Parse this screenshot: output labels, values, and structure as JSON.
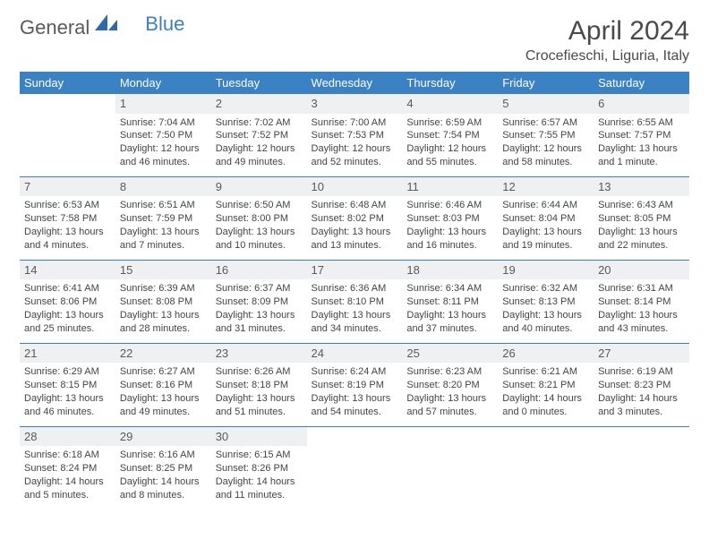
{
  "brand": {
    "part1": "General",
    "part2": "Blue"
  },
  "title": "April 2024",
  "location": "Crocefieschi, Liguria, Italy",
  "colors": {
    "header_bg": "#3b82c4",
    "header_text": "#ffffff",
    "daynum_bg": "#eef0f2",
    "row_border": "#3b7fc4",
    "text": "#444444",
    "title_text": "#4a4a4a"
  },
  "weekdays": [
    "Sunday",
    "Monday",
    "Tuesday",
    "Wednesday",
    "Thursday",
    "Friday",
    "Saturday"
  ],
  "start_offset": 1,
  "days": [
    {
      "n": 1,
      "sr": "7:04 AM",
      "ss": "7:50 PM",
      "dl": "12 hours and 46 minutes."
    },
    {
      "n": 2,
      "sr": "7:02 AM",
      "ss": "7:52 PM",
      "dl": "12 hours and 49 minutes."
    },
    {
      "n": 3,
      "sr": "7:00 AM",
      "ss": "7:53 PM",
      "dl": "12 hours and 52 minutes."
    },
    {
      "n": 4,
      "sr": "6:59 AM",
      "ss": "7:54 PM",
      "dl": "12 hours and 55 minutes."
    },
    {
      "n": 5,
      "sr": "6:57 AM",
      "ss": "7:55 PM",
      "dl": "12 hours and 58 minutes."
    },
    {
      "n": 6,
      "sr": "6:55 AM",
      "ss": "7:57 PM",
      "dl": "13 hours and 1 minute."
    },
    {
      "n": 7,
      "sr": "6:53 AM",
      "ss": "7:58 PM",
      "dl": "13 hours and 4 minutes."
    },
    {
      "n": 8,
      "sr": "6:51 AM",
      "ss": "7:59 PM",
      "dl": "13 hours and 7 minutes."
    },
    {
      "n": 9,
      "sr": "6:50 AM",
      "ss": "8:00 PM",
      "dl": "13 hours and 10 minutes."
    },
    {
      "n": 10,
      "sr": "6:48 AM",
      "ss": "8:02 PM",
      "dl": "13 hours and 13 minutes."
    },
    {
      "n": 11,
      "sr": "6:46 AM",
      "ss": "8:03 PM",
      "dl": "13 hours and 16 minutes."
    },
    {
      "n": 12,
      "sr": "6:44 AM",
      "ss": "8:04 PM",
      "dl": "13 hours and 19 minutes."
    },
    {
      "n": 13,
      "sr": "6:43 AM",
      "ss": "8:05 PM",
      "dl": "13 hours and 22 minutes."
    },
    {
      "n": 14,
      "sr": "6:41 AM",
      "ss": "8:06 PM",
      "dl": "13 hours and 25 minutes."
    },
    {
      "n": 15,
      "sr": "6:39 AM",
      "ss": "8:08 PM",
      "dl": "13 hours and 28 minutes."
    },
    {
      "n": 16,
      "sr": "6:37 AM",
      "ss": "8:09 PM",
      "dl": "13 hours and 31 minutes."
    },
    {
      "n": 17,
      "sr": "6:36 AM",
      "ss": "8:10 PM",
      "dl": "13 hours and 34 minutes."
    },
    {
      "n": 18,
      "sr": "6:34 AM",
      "ss": "8:11 PM",
      "dl": "13 hours and 37 minutes."
    },
    {
      "n": 19,
      "sr": "6:32 AM",
      "ss": "8:13 PM",
      "dl": "13 hours and 40 minutes."
    },
    {
      "n": 20,
      "sr": "6:31 AM",
      "ss": "8:14 PM",
      "dl": "13 hours and 43 minutes."
    },
    {
      "n": 21,
      "sr": "6:29 AM",
      "ss": "8:15 PM",
      "dl": "13 hours and 46 minutes."
    },
    {
      "n": 22,
      "sr": "6:27 AM",
      "ss": "8:16 PM",
      "dl": "13 hours and 49 minutes."
    },
    {
      "n": 23,
      "sr": "6:26 AM",
      "ss": "8:18 PM",
      "dl": "13 hours and 51 minutes."
    },
    {
      "n": 24,
      "sr": "6:24 AM",
      "ss": "8:19 PM",
      "dl": "13 hours and 54 minutes."
    },
    {
      "n": 25,
      "sr": "6:23 AM",
      "ss": "8:20 PM",
      "dl": "13 hours and 57 minutes."
    },
    {
      "n": 26,
      "sr": "6:21 AM",
      "ss": "8:21 PM",
      "dl": "14 hours and 0 minutes."
    },
    {
      "n": 27,
      "sr": "6:19 AM",
      "ss": "8:23 PM",
      "dl": "14 hours and 3 minutes."
    },
    {
      "n": 28,
      "sr": "6:18 AM",
      "ss": "8:24 PM",
      "dl": "14 hours and 5 minutes."
    },
    {
      "n": 29,
      "sr": "6:16 AM",
      "ss": "8:25 PM",
      "dl": "14 hours and 8 minutes."
    },
    {
      "n": 30,
      "sr": "6:15 AM",
      "ss": "8:26 PM",
      "dl": "14 hours and 11 minutes."
    }
  ],
  "labels": {
    "sunrise": "Sunrise:",
    "sunset": "Sunset:",
    "daylight": "Daylight:"
  }
}
